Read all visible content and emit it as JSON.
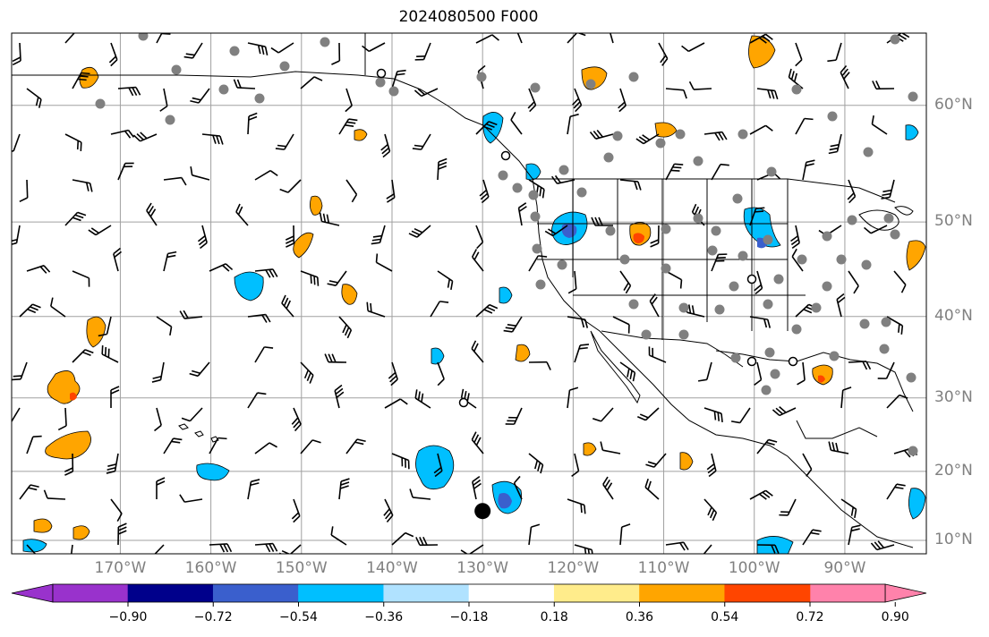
{
  "title": "2024080500 F000",
  "map": {
    "projection": "Mercator",
    "lon_range": [
      -182,
      -81
    ],
    "lat_range": [
      8,
      65
    ],
    "lon_labels": [
      {
        "lon": -170,
        "text": "170°W"
      },
      {
        "lon": -160,
        "text": "160°W"
      },
      {
        "lon": -150,
        "text": "150°W"
      },
      {
        "lon": -140,
        "text": "140°W"
      },
      {
        "lon": -130,
        "text": "130°W"
      },
      {
        "lon": -120,
        "text": "120°W"
      },
      {
        "lon": -110,
        "text": "110°W"
      },
      {
        "lon": -100,
        "text": "100°W"
      },
      {
        "lon": -90,
        "text": "90°W"
      }
    ],
    "lat_labels": [
      {
        "lat": 60,
        "text": "60°N"
      },
      {
        "lat": 50,
        "text": "50°N"
      },
      {
        "lat": 40,
        "text": "40°N"
      },
      {
        "lat": 30,
        "text": "30°N"
      },
      {
        "lat": 20,
        "text": "20°N"
      },
      {
        "lat": 10,
        "text": "10°N"
      }
    ],
    "gridlines": true,
    "gridline_color": "#a0a0a0",
    "coastline_color": "#000000",
    "station_marker_color": "#808080",
    "marked_point": {
      "lon": -130,
      "lat": 14.3,
      "color": "#000000"
    }
  },
  "colorbar": {
    "extend": "both",
    "levels": [
      -0.9,
      -0.72,
      -0.54,
      -0.36,
      -0.18,
      0.18,
      0.36,
      0.54,
      0.72,
      0.9
    ],
    "tick_labels": [
      "−0.90",
      "−0.72",
      "−0.54",
      "−0.36",
      "−0.18",
      "0.18",
      "0.36",
      "0.54",
      "0.72",
      "0.90"
    ],
    "colors": [
      "#9932cc",
      "#00008b",
      "#3a5fcd",
      "#00bfff",
      "#b0e2ff",
      "#ffffff",
      "#ffec8b",
      "#ffa500",
      "#ff4500",
      "#b22222",
      "#ff82ab"
    ]
  }
}
